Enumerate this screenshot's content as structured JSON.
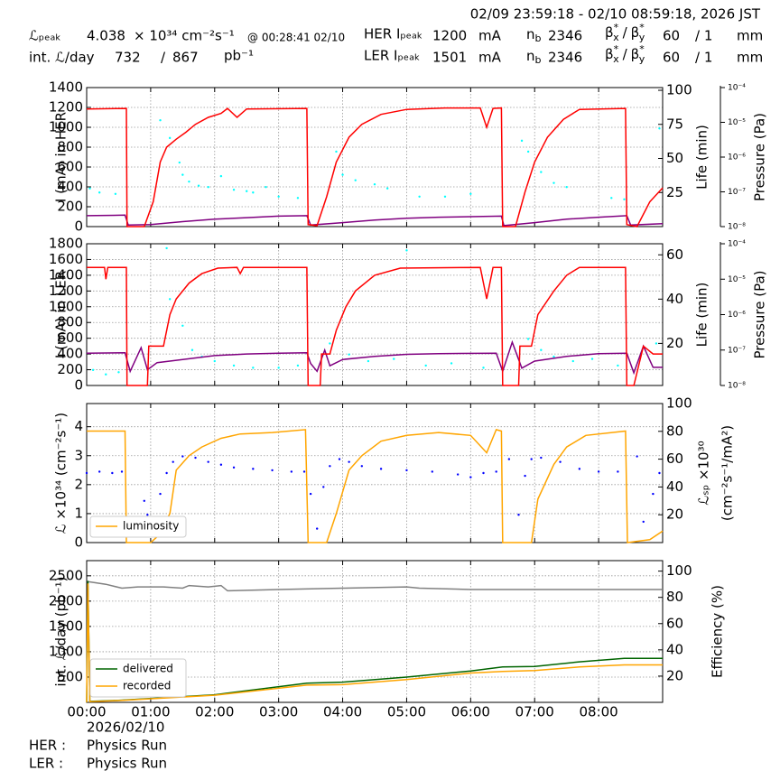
{
  "header": {
    "timestamp": "02/09 23:59:18 - 02/10 08:59:18, 2026 JST",
    "lpeak_label": "ℒₚₑₐₖ",
    "lpeak_value": "4.038",
    "lpeak_unit": "× 10³⁴ cm⁻²s⁻¹",
    "lpeak_time": "@ 00:28:41 02/10",
    "intl_label": "int. ℒ/day",
    "intl_recorded": "732",
    "slash": "/",
    "intl_delivered": "867",
    "intl_unit": "pb⁻¹",
    "her_label": "HER Iₚₑₐₖ",
    "her_ipeak": "1200",
    "ler_label": "LER Iₚₑₐₖ",
    "ler_ipeak": "1501",
    "unit_ma": "mA",
    "n": "n",
    "b": "b",
    "her_nb": "2346",
    "ler_nb": "2346",
    "beta": "β",
    "star": "*",
    "sx": "x",
    "sy": "y",
    "her_bx": "60",
    "her_by": "/ 1",
    "ler_bx": "60",
    "ler_by": "/ 1",
    "unit_mm": "mm"
  },
  "chart_data": [
    {
      "type": "line",
      "ylabel": "I (mA) in HER",
      "y2label": "Life (min)",
      "y3label": "Pressure (Pa)",
      "xlim": [
        0,
        9
      ],
      "xticks": [
        0,
        1,
        2,
        3,
        4,
        5,
        6,
        7,
        8
      ],
      "grid": true,
      "ylim": [
        0,
        1400
      ],
      "yticks": [
        0,
        200,
        400,
        600,
        800,
        1000,
        1200,
        1400
      ],
      "y2lim": [
        0,
        102
      ],
      "y2ticks": [
        25,
        50,
        75,
        100
      ],
      "y3lim": [
        1e-08,
        0.0001
      ],
      "y3scale": "log",
      "y3ticks": [
        {
          "value": 1e-08,
          "label": "10⁻⁸"
        },
        {
          "value": 1e-07,
          "label": "10⁻⁷"
        },
        {
          "value": 1e-06,
          "label": "10⁻⁶"
        },
        {
          "value": 1e-05,
          "label": "10⁻⁵"
        },
        {
          "value": 0.0001,
          "label": "10⁻⁴"
        }
      ],
      "series": [
        {
          "style": "scatter",
          "color": "#00ffff",
          "axis": "y2",
          "x": [
            0.05,
            0.2,
            0.45,
            1.15,
            1.3,
            1.45,
            1.5,
            1.6,
            1.75,
            1.9,
            2.1,
            2.3,
            2.5,
            2.6,
            2.8,
            3.0,
            3.3,
            3.9,
            4.0,
            4.2,
            4.5,
            4.7,
            5.2,
            5.6,
            6.0,
            6.8,
            6.9,
            7.1,
            7.3,
            7.5,
            8.2,
            8.4,
            8.95
          ],
          "values": [
            28,
            25,
            24,
            78,
            65,
            47,
            38,
            33,
            30,
            29,
            37,
            27,
            26,
            25,
            29,
            22,
            21,
            55,
            38,
            34,
            31,
            28,
            22,
            22,
            24,
            63,
            55,
            40,
            32,
            29,
            21,
            20,
            72
          ]
        },
        {
          "style": "line",
          "color": "#800080",
          "x": [
            0,
            0.6,
            0.65,
            1.0,
            1.5,
            2.0,
            2.5,
            3.0,
            3.44,
            3.5,
            4.0,
            4.5,
            5.0,
            5.5,
            6.0,
            6.48,
            6.52,
            7.0,
            7.5,
            8.0,
            8.44,
            8.5,
            9.0
          ],
          "values": [
            110,
            115,
            15,
            20,
            50,
            75,
            90,
            105,
            110,
            15,
            40,
            65,
            85,
            95,
            100,
            105,
            10,
            40,
            75,
            95,
            110,
            15,
            30
          ]
        },
        {
          "style": "line",
          "color": "#ff0000",
          "x": [
            0,
            0.62,
            0.63,
            0.9,
            1.04,
            1.15,
            1.25,
            1.4,
            1.55,
            1.7,
            1.9,
            2.1,
            2.2,
            2.35,
            2.5,
            3.44,
            3.46,
            3.6,
            3.75,
            3.9,
            4.1,
            4.3,
            4.6,
            5.0,
            5.6,
            6.15,
            6.25,
            6.35,
            6.48,
            6.5,
            6.7,
            6.85,
            7.0,
            7.2,
            7.45,
            7.7,
            8.42,
            8.44,
            8.6,
            8.8,
            9.0
          ],
          "values": [
            1185,
            1190,
            0,
            0,
            250,
            650,
            800,
            880,
            950,
            1030,
            1100,
            1140,
            1190,
            1100,
            1185,
            1190,
            20,
            10,
            300,
            650,
            900,
            1030,
            1130,
            1180,
            1195,
            1195,
            1000,
            1190,
            1195,
            0,
            0,
            350,
            650,
            900,
            1080,
            1180,
            1190,
            20,
            0,
            250,
            390
          ]
        }
      ]
    },
    {
      "type": "line",
      "ylabel": "I (mA) in LER",
      "y2label": "Life (min)",
      "y3label": "Pressure (Pa)",
      "xlim": [
        0,
        9
      ],
      "xticks": [
        0,
        1,
        2,
        3,
        4,
        5,
        6,
        7,
        8
      ],
      "grid": true,
      "ylim": [
        0,
        1800
      ],
      "yticks": [
        0,
        200,
        400,
        600,
        800,
        1000,
        1200,
        1400,
        1600,
        1800
      ],
      "y2lim": [
        1,
        65
      ],
      "y2ticks": [
        20,
        40,
        60
      ],
      "y3lim": [
        1e-08,
        0.0001
      ],
      "y3scale": "log",
      "y3ticks": [
        {
          "value": 1e-08,
          "label": "10⁻⁸"
        },
        {
          "value": 1e-07,
          "label": "10⁻⁷"
        },
        {
          "value": 1e-06,
          "label": "10⁻⁶"
        },
        {
          "value": 1e-05,
          "label": "10⁻⁵"
        },
        {
          "value": 0.0001,
          "label": "10⁻⁴"
        }
      ],
      "series": [
        {
          "style": "scatter",
          "color": "#00ffff",
          "axis": "y2",
          "x": [
            0.1,
            0.3,
            0.5,
            1.25,
            1.3,
            1.5,
            1.65,
            1.8,
            2.0,
            2.3,
            2.6,
            3.0,
            3.3,
            3.8,
            4.1,
            4.4,
            4.8,
            5.0,
            5.3,
            5.7,
            6.2,
            6.9,
            7.1,
            7.3,
            7.6,
            7.9,
            8.3,
            8.9
          ],
          "values": [
            8,
            6,
            7,
            63,
            40,
            28,
            17,
            14,
            12,
            10,
            9,
            9,
            10,
            20,
            15,
            12,
            13,
            62,
            10,
            11,
            9,
            22,
            17,
            14,
            12,
            13,
            10,
            20
          ]
        },
        {
          "style": "line",
          "color": "#800080",
          "x": [
            0,
            0.6,
            0.68,
            0.85,
            0.95,
            1.1,
            1.5,
            2.0,
            2.5,
            3.0,
            3.44,
            3.5,
            3.6,
            3.72,
            3.8,
            4.0,
            4.5,
            5.0,
            5.5,
            6.4,
            6.5,
            6.65,
            6.8,
            7.0,
            7.5,
            8.0,
            8.44,
            8.55,
            8.7,
            8.85,
            9.0
          ],
          "values": [
            410,
            415,
            180,
            480,
            200,
            290,
            330,
            380,
            400,
            410,
            415,
            280,
            180,
            450,
            250,
            330,
            370,
            395,
            405,
            410,
            180,
            550,
            220,
            310,
            370,
            405,
            410,
            160,
            500,
            230,
            230
          ]
        },
        {
          "style": "line",
          "color": "#ff0000",
          "x": [
            0,
            0.28,
            0.3,
            0.33,
            0.62,
            0.63,
            0.95,
            0.97,
            1.2,
            1.3,
            1.4,
            1.6,
            1.8,
            2.05,
            2.35,
            2.4,
            2.45,
            3.44,
            3.46,
            3.65,
            3.67,
            3.8,
            3.9,
            4.05,
            4.2,
            4.5,
            4.9,
            6.15,
            6.25,
            6.35,
            6.48,
            6.5,
            6.75,
            6.77,
            6.95,
            7.05,
            7.3,
            7.5,
            7.7,
            8.42,
            8.44,
            8.55,
            8.7,
            8.85,
            9.0
          ],
          "values": [
            1500,
            1500,
            1350,
            1500,
            1500,
            0,
            0,
            500,
            500,
            900,
            1100,
            1300,
            1420,
            1490,
            1500,
            1420,
            1500,
            1500,
            0,
            0,
            400,
            400,
            700,
            1000,
            1200,
            1400,
            1490,
            1500,
            1100,
            1500,
            1500,
            0,
            0,
            500,
            500,
            900,
            1200,
            1400,
            1500,
            1500,
            0,
            0,
            500,
            400,
            400
          ]
        }
      ]
    },
    {
      "type": "line",
      "ylabel": "ℒ ×10³⁴ (cm⁻²s⁻¹)",
      "y2label": [
        "ℒₛₚ ×10³⁰",
        "(cm⁻²s⁻¹/mA²)"
      ],
      "xlim": [
        0,
        9
      ],
      "xticks": [
        0,
        1,
        2,
        3,
        4,
        5,
        6,
        7,
        8
      ],
      "grid": true,
      "ylim": [
        0,
        4.8
      ],
      "yticks": [
        0,
        1,
        2,
        3,
        4
      ],
      "y2lim": [
        0,
        100
      ],
      "y2ticks": [
        20,
        40,
        60,
        80,
        100
      ],
      "legend": "lower left",
      "series": [
        {
          "style": "scatter",
          "color": "#0000ff",
          "axis": "y2",
          "x": [
            0,
            0.2,
            0.4,
            0.55,
            0.9,
            0.95,
            1.05,
            1.15,
            1.25,
            1.35,
            1.5,
            1.7,
            1.9,
            2.1,
            2.3,
            2.6,
            2.9,
            3.2,
            3.4,
            3.5,
            3.6,
            3.7,
            3.8,
            3.95,
            4.1,
            4.3,
            4.6,
            5.0,
            5.4,
            5.8,
            6.0,
            6.2,
            6.4,
            6.6,
            6.75,
            6.85,
            6.95,
            7.1,
            7.4,
            7.7,
            8.0,
            8.3,
            8.6,
            8.7,
            8.85,
            8.95
          ],
          "values": [
            50,
            51,
            50,
            51,
            30,
            20,
            10,
            35,
            50,
            58,
            62,
            61,
            58,
            56,
            54,
            53,
            52,
            51,
            51,
            35,
            10,
            40,
            55,
            60,
            58,
            55,
            53,
            52,
            51,
            49,
            47,
            50,
            51,
            60,
            20,
            48,
            60,
            61,
            58,
            53,
            51,
            51,
            62,
            15,
            35,
            50
          ]
        },
        {
          "name": "luminosity",
          "style": "line",
          "color": "#ffa500",
          "x": [
            0,
            0.6,
            0.62,
            1.0,
            1.1,
            1.3,
            1.4,
            1.6,
            1.8,
            2.1,
            2.4,
            2.9,
            3.42,
            3.46,
            3.75,
            3.9,
            4.1,
            4.3,
            4.6,
            5.0,
            5.5,
            6.0,
            6.25,
            6.4,
            6.48,
            6.5,
            6.95,
            7.05,
            7.3,
            7.5,
            7.8,
            8.42,
            8.45,
            8.8,
            9.0
          ],
          "values": [
            3.85,
            3.85,
            0,
            0,
            0.2,
            1.0,
            2.5,
            3.0,
            3.3,
            3.6,
            3.75,
            3.8,
            3.9,
            0,
            0,
            1.0,
            2.5,
            3.0,
            3.5,
            3.7,
            3.8,
            3.7,
            3.1,
            3.9,
            3.85,
            0,
            0,
            1.5,
            2.7,
            3.3,
            3.7,
            3.85,
            0,
            0.1,
            0.4
          ]
        }
      ]
    },
    {
      "type": "line",
      "ylabel": "int. ℒ/day (pb⁻¹)",
      "y2label": "Efficiency (%)",
      "xlim": [
        0,
        9
      ],
      "grid": true,
      "xticks": [
        {
          "value": 0,
          "label": "00:00"
        },
        {
          "value": 1,
          "label": "01:00"
        },
        {
          "value": 2,
          "label": "02:00"
        },
        {
          "value": 3,
          "label": "03:00"
        },
        {
          "value": 4,
          "label": "04:00"
        },
        {
          "value": 5,
          "label": "05:00"
        },
        {
          "value": 6,
          "label": "06:00"
        },
        {
          "value": 7,
          "label": "07:00"
        },
        {
          "value": 8,
          "label": "08:00"
        }
      ],
      "ylim": [
        0,
        2800
      ],
      "yticks": [
        500,
        1000,
        1500,
        2000,
        2500
      ],
      "y2lim": [
        0,
        108
      ],
      "y2ticks": [
        20,
        40,
        60,
        80,
        100
      ],
      "legend": "lower left",
      "series": [
        {
          "style": "line",
          "color": "#808080",
          "axis": "y2",
          "x": [
            0.02,
            0.3,
            0.55,
            0.8,
            1.2,
            1.5,
            1.6,
            1.9,
            2.1,
            2.2,
            3.0,
            4.0,
            5.0,
            5.2,
            6.0,
            6.6,
            7.5,
            9.0
          ],
          "values": [
            92,
            90,
            87,
            88,
            88,
            87,
            89,
            88,
            89,
            85,
            86,
            87,
            88,
            87,
            86,
            86,
            86,
            86
          ]
        },
        {
          "name": "delivered",
          "style": "line",
          "color": "#006400",
          "x": [
            0,
            0.02,
            0.05,
            0.5,
            2.0,
            3.44,
            4.0,
            5.0,
            6.0,
            6.5,
            7.0,
            7.7,
            8.4,
            9.0
          ],
          "values": [
            0,
            2400,
            20,
            40,
            150,
            380,
            400,
            500,
            620,
            700,
            710,
            800,
            870,
            870
          ]
        },
        {
          "name": "recorded",
          "style": "line",
          "color": "#ffa500",
          "x": [
            0,
            0.02,
            0.05,
            0.5,
            2.0,
            3.44,
            4.0,
            5.0,
            6.0,
            6.5,
            7.0,
            7.7,
            8.4,
            9.0
          ],
          "values": [
            0,
            2350,
            15,
            35,
            140,
            340,
            350,
            450,
            580,
            610,
            630,
            700,
            740,
            740
          ]
        }
      ]
    }
  ],
  "footer": {
    "date": "2026/02/10",
    "her_label": "HER :",
    "her_mode": "Physics Run",
    "ler_label": "LER :",
    "ler_mode": "Physics Run"
  }
}
